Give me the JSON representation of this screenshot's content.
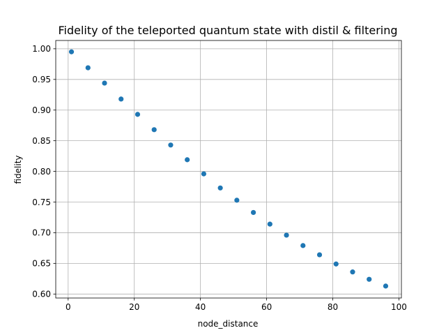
{
  "chart_data": {
    "type": "scatter",
    "title": "Fidelity of the teleported quantum state with distil & filtering",
    "xlabel": "node_distance",
    "ylabel": "fidelity",
    "xlim": [
      -3.75,
      100.75
    ],
    "ylim": [
      0.5935,
      1.0135
    ],
    "xticks": [
      0,
      20,
      40,
      60,
      80,
      100
    ],
    "yticks": [
      0.6,
      0.65,
      0.7,
      0.75,
      0.8,
      0.85,
      0.9,
      0.95,
      1.0
    ],
    "grid": true,
    "marker_color": "#1f77b4",
    "series": [
      {
        "x": [
          1,
          6,
          11,
          16,
          21,
          26,
          31,
          36,
          41,
          46,
          51,
          56,
          61,
          66,
          71,
          76,
          81,
          86,
          91,
          96
        ],
        "y": [
          0.995,
          0.969,
          0.944,
          0.918,
          0.893,
          0.868,
          0.843,
          0.819,
          0.796,
          0.773,
          0.753,
          0.733,
          0.714,
          0.696,
          0.679,
          0.664,
          0.649,
          0.636,
          0.624,
          0.613
        ]
      }
    ]
  }
}
